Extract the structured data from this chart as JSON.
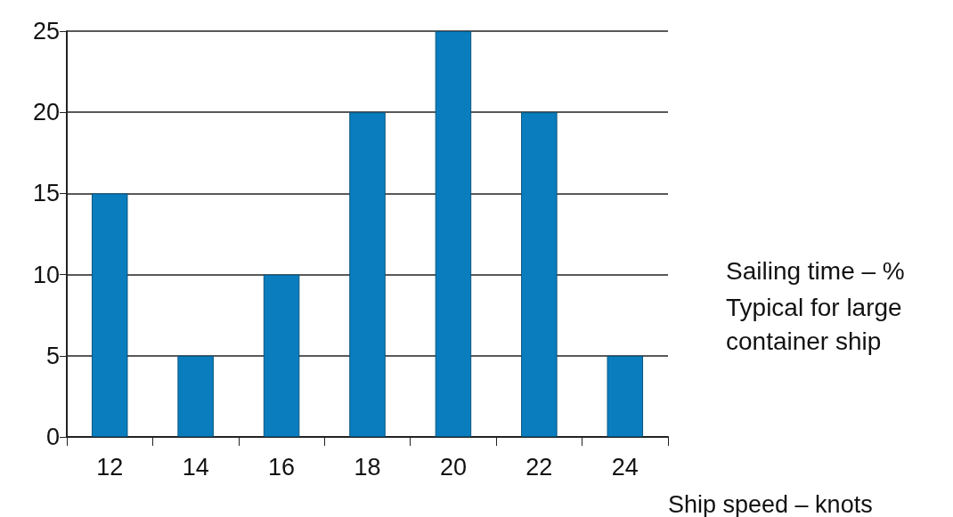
{
  "chart_data": {
    "type": "bar",
    "ylabel": "Sailing time – %",
    "xlabel": "Ship speed – knots",
    "annotations": [
      "Typical for large container ship"
    ],
    "categories": [
      "12",
      "14",
      "16",
      "18",
      "20",
      "22",
      "24"
    ],
    "values": [
      15,
      5,
      10,
      20,
      25,
      20,
      5
    ],
    "color": "#0a7dbf",
    "ylim": [
      0,
      25
    ],
    "yticks": [
      0,
      5,
      10,
      15,
      20,
      25
    ],
    "grid": "y"
  }
}
